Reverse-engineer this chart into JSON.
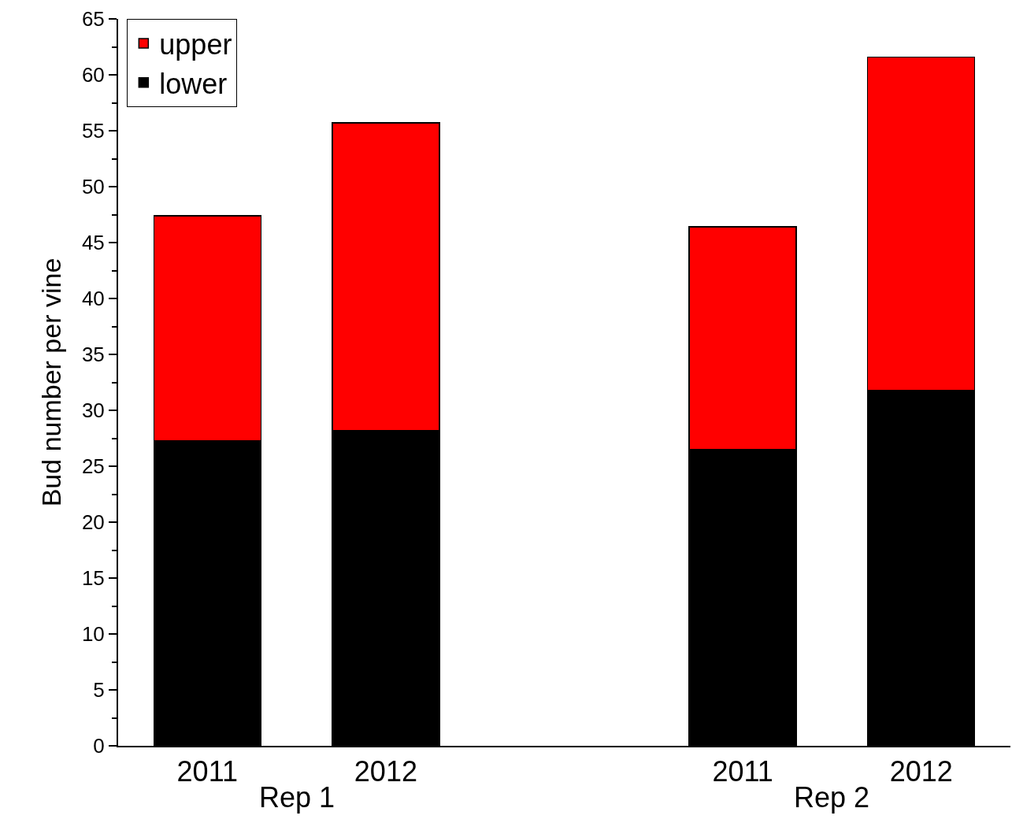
{
  "chart_data": {
    "type": "bar",
    "ylabel": "Bud number per vine",
    "categories": [
      "2011",
      "2012",
      null,
      "2011",
      "2012"
    ],
    "stacked": true,
    "series": [
      {
        "name": "lower",
        "color": "#000000",
        "values": [
          27.3,
          28.2,
          null,
          26.5,
          31.8
        ]
      },
      {
        "name": "upper",
        "color": "#ff0000",
        "values": [
          20.1,
          27.5,
          null,
          19.9,
          29.8
        ]
      }
    ],
    "ylim": [
      0,
      65
    ],
    "yticks": [
      0,
      5,
      10,
      15,
      20,
      25,
      30,
      35,
      40,
      45,
      50,
      55,
      60,
      65
    ],
    "grid": false,
    "legend": "top left",
    "annotations": [
      "Rep 1",
      "Rep 2"
    ]
  }
}
